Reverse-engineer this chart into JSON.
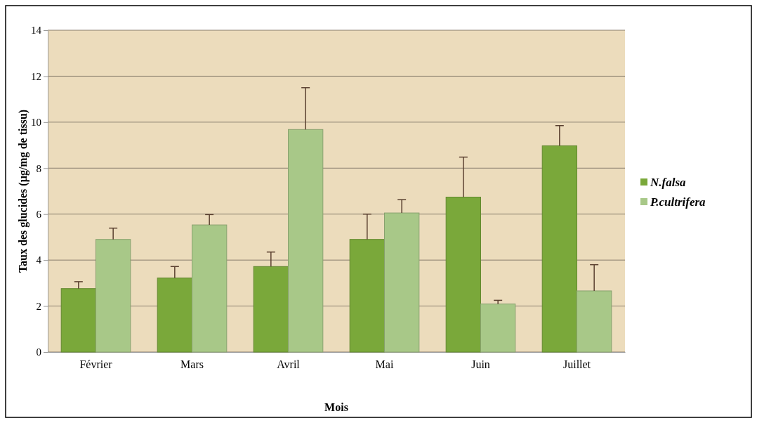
{
  "chart_data": {
    "type": "bar",
    "xlabel": "Mois",
    "ylabel": "Taux des glucides (µg/mg de tissu)",
    "categories": [
      "Février",
      "Mars",
      "Avril",
      "Mai",
      "Juin",
      "Juillet"
    ],
    "series": [
      {
        "name": "N.falsa",
        "color": "#7aa83a",
        "values": [
          2.76,
          3.22,
          3.72,
          4.9,
          6.74,
          8.97
        ],
        "errors": [
          [
            2.76,
            3.06
          ],
          [
            3.22,
            3.72
          ],
          [
            3.72,
            4.35
          ],
          [
            4.9,
            6.0
          ],
          [
            6.74,
            8.48
          ],
          [
            8.97,
            9.85
          ]
        ]
      },
      {
        "name": "P.cultrifera",
        "color": "#a8c888",
        "values": [
          4.9,
          5.53,
          9.68,
          6.05,
          2.09,
          2.66
        ],
        "errors": [
          [
            4.9,
            5.39
          ],
          [
            5.53,
            5.98
          ],
          [
            9.68,
            11.5
          ],
          [
            6.05,
            6.63
          ],
          [
            2.09,
            2.25
          ],
          [
            2.66,
            3.8
          ]
        ]
      }
    ],
    "ylim": [
      0,
      14
    ],
    "yticks": [
      0,
      2,
      4,
      6,
      8,
      10,
      12,
      14
    ],
    "grid": "y",
    "legend": "right"
  }
}
